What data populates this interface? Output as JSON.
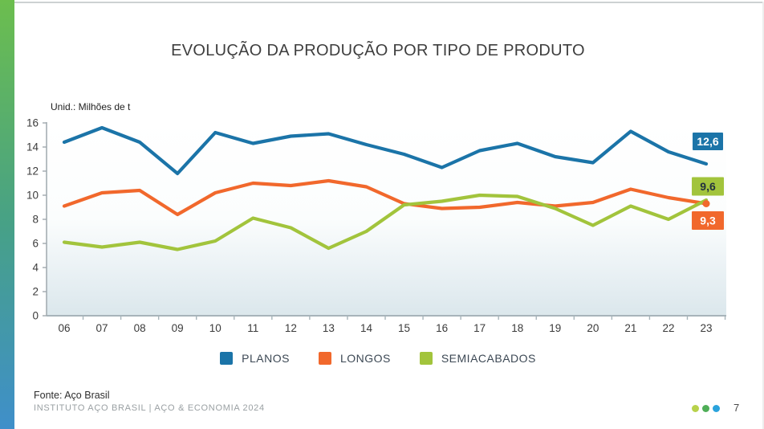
{
  "title": "EVOLUÇÃO DA PRODUÇÃO POR TIPO DE PRODUTO",
  "unit_label": "Unid.: Milhões de t",
  "chart_data": {
    "type": "line",
    "categories": [
      "06",
      "07",
      "08",
      "09",
      "10",
      "11",
      "12",
      "13",
      "14",
      "15",
      "16",
      "17",
      "18",
      "19",
      "20",
      "21",
      "22",
      "23"
    ],
    "series": [
      {
        "name": "PLANOS",
        "color": "#1b74a8",
        "values": [
          14.4,
          15.6,
          14.4,
          11.8,
          15.2,
          14.3,
          14.9,
          15.1,
          14.2,
          13.4,
          12.3,
          13.7,
          14.3,
          13.2,
          12.7,
          15.3,
          13.6,
          12.6
        ],
        "end_label": "12,6",
        "end_label_text_color": "#ffffff",
        "end_marker": false
      },
      {
        "name": "LONGOS",
        "color": "#f1682c",
        "values": [
          9.1,
          10.2,
          10.4,
          8.4,
          10.2,
          11.0,
          10.8,
          11.2,
          10.7,
          9.3,
          8.9,
          9.0,
          9.4,
          9.1,
          9.4,
          10.5,
          9.8,
          9.3
        ],
        "end_label": "9,3",
        "end_label_text_color": "#ffffff",
        "end_marker": true
      },
      {
        "name": "SEMIACABADOS",
        "color": "#a2c43c",
        "values": [
          6.1,
          5.7,
          6.1,
          5.5,
          6.2,
          8.1,
          7.3,
          5.6,
          7.0,
          9.2,
          9.5,
          10.0,
          9.9,
          8.9,
          7.5,
          9.1,
          8.0,
          9.6
        ],
        "end_label": "9,6",
        "end_label_text_color": "#22313f",
        "end_marker": false
      }
    ],
    "ylim": [
      0,
      16
    ],
    "yticks": [
      0,
      2,
      4,
      6,
      8,
      10,
      12,
      14,
      16
    ],
    "grid": false,
    "legend_position": "bottom"
  },
  "footer": {
    "source": "Fonte: Aço Brasil",
    "institute": "INSTITUTO AÇO BRASIL | AÇO & ECONOMIA 2024",
    "page": "7",
    "dots": [
      "#b8d24b",
      "#4fae57",
      "#2aa3dc"
    ]
  }
}
